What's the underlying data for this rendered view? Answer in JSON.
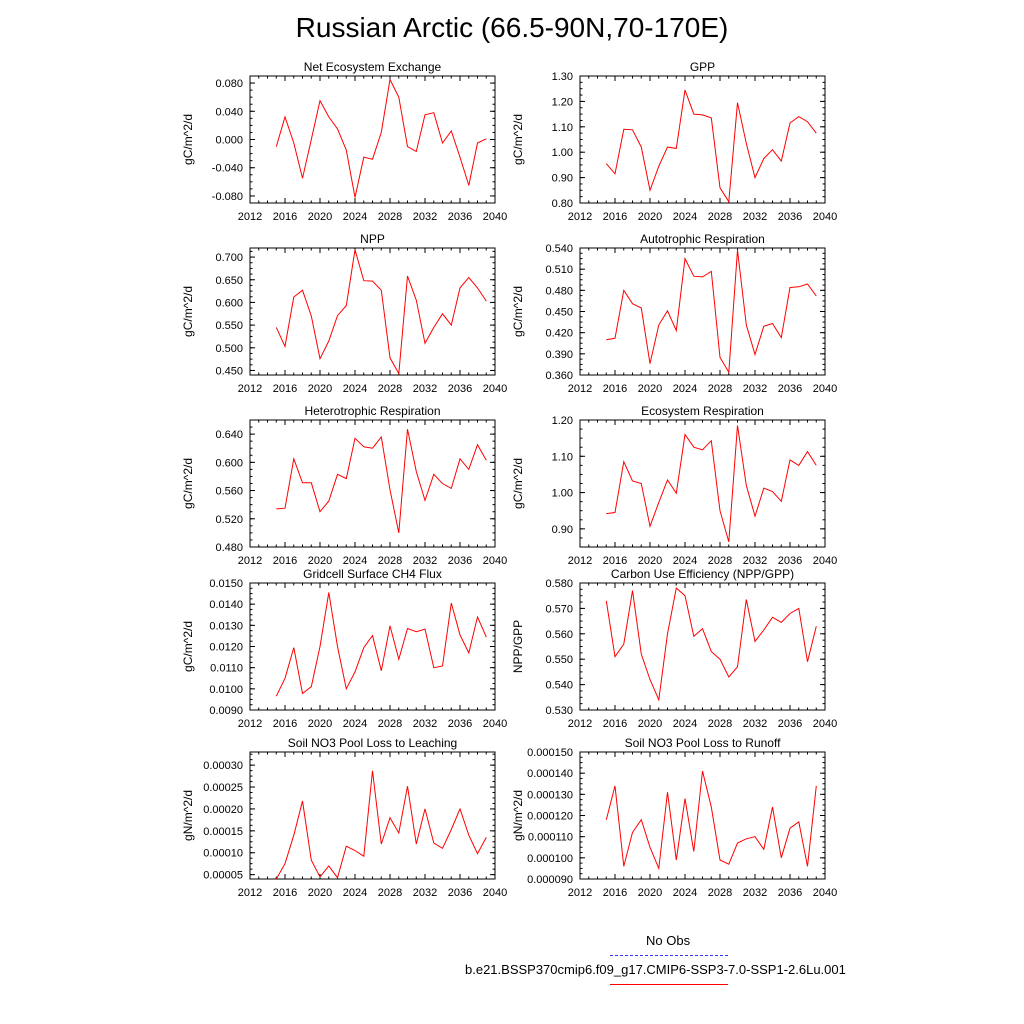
{
  "title": "Russian Arctic (66.5-90N,70-170E)",
  "colors": {
    "series": "#ff0000",
    "obs": "#3333ff",
    "axis": "#000000"
  },
  "legend": {
    "items": [
      {
        "label": "No Obs",
        "style": "dashed",
        "color": "#3333ff"
      },
      {
        "label": "b.e21.BSSP370cmip6.f09_g17.CMIP6-SSP3-7.0-SSP1-2.6Lu.001",
        "style": "solid",
        "color": "#ff0000"
      }
    ]
  },
  "chart_data": [
    {
      "type": "line",
      "title": "Net Ecosystem Exchange",
      "ylabel": "gC/m^2/d",
      "xlim": [
        2012,
        2040
      ],
      "xticks": [
        "2012",
        "2016",
        "2020",
        "2024",
        "2028",
        "2032",
        "2036",
        "2040"
      ],
      "ylim": [
        -0.09,
        0.09
      ],
      "yticks": [
        "0.080",
        "0.040",
        "0.000",
        "-0.040",
        "-0.080"
      ],
      "x": [
        2015,
        2016,
        2017,
        2018,
        2019,
        2020,
        2021,
        2022,
        2023,
        2024,
        2025,
        2026,
        2027,
        2028,
        2029,
        2030,
        2031,
        2032,
        2033,
        2034,
        2035,
        2036,
        2037,
        2038,
        2039
      ],
      "values": [
        -0.01,
        0.032,
        -0.005,
        -0.055,
        0.0,
        0.055,
        0.032,
        0.015,
        -0.015,
        -0.082,
        -0.025,
        -0.028,
        0.01,
        0.085,
        0.06,
        -0.01,
        -0.017,
        0.035,
        0.038,
        -0.005,
        0.012,
        -0.025,
        -0.065,
        -0.005,
        0.001
      ]
    },
    {
      "type": "line",
      "title": "GPP",
      "ylabel": "gC/m^2/d",
      "xlim": [
        2012,
        2040
      ],
      "xticks": [
        "2012",
        "2016",
        "2020",
        "2024",
        "2028",
        "2032",
        "2036",
        "2040"
      ],
      "ylim": [
        0.8,
        1.3
      ],
      "yticks": [
        "1.30",
        "1.20",
        "1.10",
        "1.00",
        "0.90",
        "0.80"
      ],
      "x": [
        2015,
        2016,
        2017,
        2018,
        2019,
        2020,
        2021,
        2022,
        2023,
        2024,
        2025,
        2026,
        2027,
        2028,
        2029,
        2030,
        2031,
        2032,
        2033,
        2034,
        2035,
        2036,
        2037,
        2038,
        2039
      ],
      "values": [
        0.955,
        0.915,
        1.09,
        1.088,
        1.02,
        0.85,
        0.945,
        1.02,
        1.015,
        1.245,
        1.15,
        1.147,
        1.135,
        0.86,
        0.805,
        1.195,
        1.035,
        0.9,
        0.975,
        1.01,
        0.965,
        1.115,
        1.14,
        1.12,
        1.075
      ]
    },
    {
      "type": "line",
      "title": "NPP",
      "ylabel": "gC/m^2/d",
      "xlim": [
        2012,
        2040
      ],
      "xticks": [
        "2012",
        "2016",
        "2020",
        "2024",
        "2028",
        "2032",
        "2036",
        "2040"
      ],
      "ylim": [
        0.44,
        0.72
      ],
      "yticks": [
        "0.700",
        "0.650",
        "0.600",
        "0.550",
        "0.500",
        "0.450"
      ],
      "x": [
        2015,
        2016,
        2017,
        2018,
        2019,
        2020,
        2021,
        2022,
        2023,
        2024,
        2025,
        2026,
        2027,
        2028,
        2029,
        2030,
        2031,
        2032,
        2033,
        2034,
        2035,
        2036,
        2037,
        2038,
        2039
      ],
      "values": [
        0.545,
        0.503,
        0.612,
        0.627,
        0.57,
        0.476,
        0.515,
        0.571,
        0.593,
        0.716,
        0.648,
        0.647,
        0.627,
        0.478,
        0.443,
        0.658,
        0.605,
        0.51,
        0.545,
        0.575,
        0.55,
        0.632,
        0.655,
        0.632,
        0.603
      ]
    },
    {
      "type": "line",
      "title": "Autotrophic Respiration",
      "ylabel": "gC/m^2/d",
      "xlim": [
        2012,
        2040
      ],
      "xticks": [
        "2012",
        "2016",
        "2020",
        "2024",
        "2028",
        "2032",
        "2036",
        "2040"
      ],
      "ylim": [
        0.36,
        0.54
      ],
      "yticks": [
        "0.540",
        "0.510",
        "0.480",
        "0.450",
        "0.420",
        "0.390",
        "0.360"
      ],
      "x": [
        2015,
        2016,
        2017,
        2018,
        2019,
        2020,
        2021,
        2022,
        2023,
        2024,
        2025,
        2026,
        2027,
        2028,
        2029,
        2030,
        2031,
        2032,
        2033,
        2034,
        2035,
        2036,
        2037,
        2038,
        2039
      ],
      "values": [
        0.41,
        0.412,
        0.48,
        0.461,
        0.455,
        0.376,
        0.431,
        0.451,
        0.423,
        0.525,
        0.5,
        0.499,
        0.507,
        0.385,
        0.364,
        0.537,
        0.431,
        0.389,
        0.429,
        0.433,
        0.413,
        0.484,
        0.485,
        0.489,
        0.472
      ]
    },
    {
      "type": "line",
      "title": "Heterotrophic Respiration",
      "ylabel": "gC/m^2/d",
      "xlim": [
        2012,
        2040
      ],
      "xticks": [
        "2012",
        "2016",
        "2020",
        "2024",
        "2028",
        "2032",
        "2036",
        "2040"
      ],
      "ylim": [
        0.48,
        0.66
      ],
      "yticks": [
        "0.640",
        "0.600",
        "0.560",
        "0.520",
        "0.480"
      ],
      "x": [
        2015,
        2016,
        2017,
        2018,
        2019,
        2020,
        2021,
        2022,
        2023,
        2024,
        2025,
        2026,
        2027,
        2028,
        2029,
        2030,
        2031,
        2032,
        2033,
        2034,
        2035,
        2036,
        2037,
        2038,
        2039
      ],
      "values": [
        0.534,
        0.535,
        0.605,
        0.571,
        0.571,
        0.53,
        0.545,
        0.583,
        0.577,
        0.634,
        0.622,
        0.62,
        0.636,
        0.561,
        0.5,
        0.647,
        0.587,
        0.546,
        0.583,
        0.57,
        0.563,
        0.605,
        0.59,
        0.625,
        0.603
      ]
    },
    {
      "type": "line",
      "title": "Ecosystem Respiration",
      "ylabel": "gC/m^2/d",
      "xlim": [
        2012,
        2040
      ],
      "xticks": [
        "2012",
        "2016",
        "2020",
        "2024",
        "2028",
        "2032",
        "2036",
        "2040"
      ],
      "ylim": [
        0.85,
        1.2
      ],
      "yticks": [
        "1.20",
        "1.10",
        "1.00",
        "0.90"
      ],
      "x": [
        2015,
        2016,
        2017,
        2018,
        2019,
        2020,
        2021,
        2022,
        2023,
        2024,
        2025,
        2026,
        2027,
        2028,
        2029,
        2030,
        2031,
        2032,
        2033,
        2034,
        2035,
        2036,
        2037,
        2038,
        2039
      ],
      "values": [
        0.942,
        0.945,
        1.085,
        1.032,
        1.025,
        0.907,
        0.973,
        1.035,
        0.998,
        1.16,
        1.125,
        1.118,
        1.143,
        0.95,
        0.864,
        1.185,
        1.02,
        0.935,
        1.012,
        1.003,
        0.976,
        1.09,
        1.075,
        1.113,
        1.075
      ]
    },
    {
      "type": "line",
      "title": "Gridcell Surface CH4 Flux",
      "ylabel": "gC/m^2/d",
      "xlim": [
        2012,
        2040
      ],
      "xticks": [
        "2012",
        "2016",
        "2020",
        "2024",
        "2028",
        "2032",
        "2036",
        "2040"
      ],
      "ylim": [
        0.009,
        0.015
      ],
      "yticks": [
        "0.0150",
        "0.0140",
        "0.0130",
        "0.0120",
        "0.0110",
        "0.0100",
        "0.0090"
      ],
      "x": [
        2015,
        2016,
        2017,
        2018,
        2019,
        2020,
        2021,
        2022,
        2023,
        2024,
        2025,
        2026,
        2027,
        2028,
        2029,
        2030,
        2031,
        2032,
        2033,
        2034,
        2035,
        2036,
        2037,
        2038,
        2039
      ],
      "values": [
        0.00965,
        0.0105,
        0.01195,
        0.00978,
        0.0101,
        0.012,
        0.01455,
        0.012,
        0.01,
        0.0108,
        0.01195,
        0.01252,
        0.01085,
        0.01298,
        0.0114,
        0.01285,
        0.0127,
        0.01282,
        0.011,
        0.01108,
        0.01405,
        0.01255,
        0.0117,
        0.0134,
        0.01245
      ]
    },
    {
      "type": "line",
      "title": "Carbon Use Efficiency (NPP/GPP)",
      "ylabel": "NPP/GPP",
      "xlim": [
        2012,
        2040
      ],
      "xticks": [
        "2012",
        "2016",
        "2020",
        "2024",
        "2028",
        "2032",
        "2036",
        "2040"
      ],
      "ylim": [
        0.53,
        0.58
      ],
      "yticks": [
        "0.580",
        "0.570",
        "0.560",
        "0.550",
        "0.540",
        "0.530"
      ],
      "x": [
        2015,
        2016,
        2017,
        2018,
        2019,
        2020,
        2021,
        2022,
        2023,
        2024,
        2025,
        2026,
        2027,
        2028,
        2029,
        2030,
        2031,
        2032,
        2033,
        2034,
        2035,
        2036,
        2037,
        2038,
        2039
      ],
      "values": [
        0.573,
        0.551,
        0.556,
        0.577,
        0.552,
        0.542,
        0.534,
        0.56,
        0.578,
        0.575,
        0.559,
        0.562,
        0.553,
        0.55,
        0.543,
        0.547,
        0.5735,
        0.557,
        0.5615,
        0.5665,
        0.5645,
        0.568,
        0.57,
        0.549,
        0.563
      ]
    },
    {
      "type": "line",
      "title": "Soil NO3 Pool Loss to Leaching",
      "ylabel": "gN/m^2/d",
      "xlim": [
        2012,
        2040
      ],
      "xticks": [
        "2012",
        "2016",
        "2020",
        "2024",
        "2028",
        "2032",
        "2036",
        "2040"
      ],
      "ylim": [
        4e-05,
        0.00033
      ],
      "yticks": [
        "0.00030",
        "0.00025",
        "0.00020",
        "0.00015",
        "0.00010",
        "0.00005"
      ],
      "x": [
        2015,
        2016,
        2017,
        2018,
        2019,
        2020,
        2021,
        2022,
        2023,
        2024,
        2025,
        2026,
        2027,
        2028,
        2029,
        2030,
        2031,
        2032,
        2033,
        2034,
        2035,
        2036,
        2037,
        2038,
        2039
      ],
      "values": [
        4e-05,
        7.5e-05,
        0.00014,
        0.000218,
        8.3e-05,
        4.5e-05,
        7e-05,
        4.3e-05,
        0.000115,
        0.000105,
        9.2e-05,
        0.000287,
        0.00012,
        0.00018,
        0.000145,
        0.000252,
        0.00012,
        0.0002,
        0.000122,
        0.00011,
        0.000153,
        0.0002,
        0.00014,
        9.8e-05,
        0.000135
      ]
    },
    {
      "type": "line",
      "title": "Soil NO3 Pool Loss to Runoff",
      "ylabel": "gN/m^2/d",
      "xlim": [
        2012,
        2040
      ],
      "xticks": [
        "2012",
        "2016",
        "2020",
        "2024",
        "2028",
        "2032",
        "2036",
        "2040"
      ],
      "ylim": [
        9e-05,
        0.00015
      ],
      "yticks": [
        "0.000150",
        "0.000140",
        "0.000130",
        "0.000120",
        "0.000110",
        "0.000100",
        "0.000090"
      ],
      "x": [
        2015,
        2016,
        2017,
        2018,
        2019,
        2020,
        2021,
        2022,
        2023,
        2024,
        2025,
        2026,
        2027,
        2028,
        2029,
        2030,
        2031,
        2032,
        2033,
        2034,
        2035,
        2036,
        2037,
        2038,
        2039
      ],
      "values": [
        0.000118,
        0.000134,
        9.6e-05,
        0.000112,
        0.000118,
        0.000105,
        9.5e-05,
        0.000131,
        9.9e-05,
        0.000128,
        0.000103,
        0.000141,
        0.000124,
        9.9e-05,
        9.7e-05,
        0.000107,
        0.000109,
        0.00011,
        0.000104,
        0.000124,
        0.0001,
        0.000114,
        0.000117,
        9.6e-05,
        0.000134
      ]
    }
  ]
}
